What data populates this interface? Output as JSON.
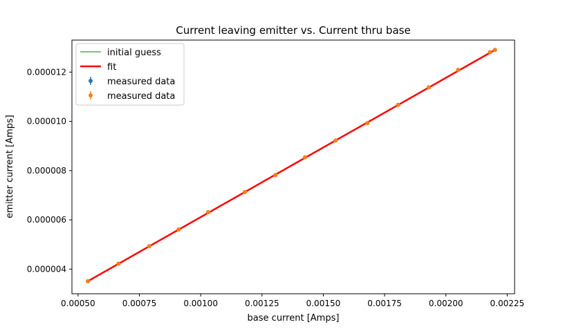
{
  "chart_data": {
    "type": "scatter",
    "title": "Current leaving emitter vs. Current thru base",
    "xlabel": "base current [Amps]",
    "ylabel": "emitter current [Amps]",
    "xlim": [
      0.000475,
      0.00228
    ],
    "ylim": [
      3e-06,
      1.33e-05
    ],
    "xticks": [
      0.0005,
      0.00075,
      0.001,
      0.00125,
      0.0015,
      0.00175,
      0.002,
      0.00225
    ],
    "xtick_labels": [
      "0.00050",
      "0.00075",
      "0.00100",
      "0.00125",
      "0.00150",
      "0.00175",
      "0.00200",
      "0.00225"
    ],
    "yticks": [
      4e-06,
      6e-06,
      8e-06,
      1e-05,
      1.2e-05
    ],
    "ytick_labels": [
      "0.000004",
      "0.000006",
      "0.000008",
      "0.000010",
      "0.000012"
    ],
    "grid": false,
    "legend_placement": "upper-left",
    "legend": [
      {
        "label": "initial guess",
        "kind": "line",
        "color": "#008000"
      },
      {
        "label": " fit",
        "kind": "thick-line",
        "color": "#ff0000"
      },
      {
        "label": "measured data",
        "kind": "errorbar-point",
        "color": "#1f77b4"
      },
      {
        "label": "measured data",
        "kind": "errorbar-point",
        "color": "#ff7f0e"
      }
    ],
    "series": [
      {
        "kind": "line",
        "color": "#008000",
        "x": [
          0.00054,
          0.0022
        ],
        "y": [
          3.51e-06,
          1.29e-05
        ]
      },
      {
        "kind": "line",
        "color": "#ff0000",
        "x": [
          0.00054,
          0.0022
        ],
        "y": [
          3.51e-06,
          1.29e-05
        ]
      },
      {
        "kind": "points",
        "color": "#1f77b4",
        "x": [
          0.00054,
          0.000665,
          0.00079,
          0.00091,
          0.00103,
          0.00118,
          0.001305,
          0.001425,
          0.00155,
          0.00168,
          0.001805,
          0.00193,
          0.00205,
          0.00218,
          0.0022
        ],
        "y": [
          3.51e-06,
          4.22e-06,
          4.93e-06,
          5.61e-06,
          6.31e-06,
          7.13e-06,
          7.82e-06,
          8.54e-06,
          9.22e-06,
          9.93e-06,
          1.067e-05,
          1.138e-05,
          1.209e-05,
          1.281e-05,
          1.29e-05
        ]
      },
      {
        "kind": "points",
        "color": "#ff7f0e",
        "x": [
          0.00054,
          0.000665,
          0.00079,
          0.00091,
          0.00103,
          0.00118,
          0.001305,
          0.001425,
          0.00155,
          0.00168,
          0.001805,
          0.00193,
          0.00205,
          0.00218,
          0.0022
        ],
        "y": [
          3.51e-06,
          4.22e-06,
          4.93e-06,
          5.61e-06,
          6.31e-06,
          7.13e-06,
          7.82e-06,
          8.54e-06,
          9.22e-06,
          9.93e-06,
          1.067e-05,
          1.138e-05,
          1.209e-05,
          1.281e-05,
          1.29e-05
        ]
      }
    ]
  }
}
